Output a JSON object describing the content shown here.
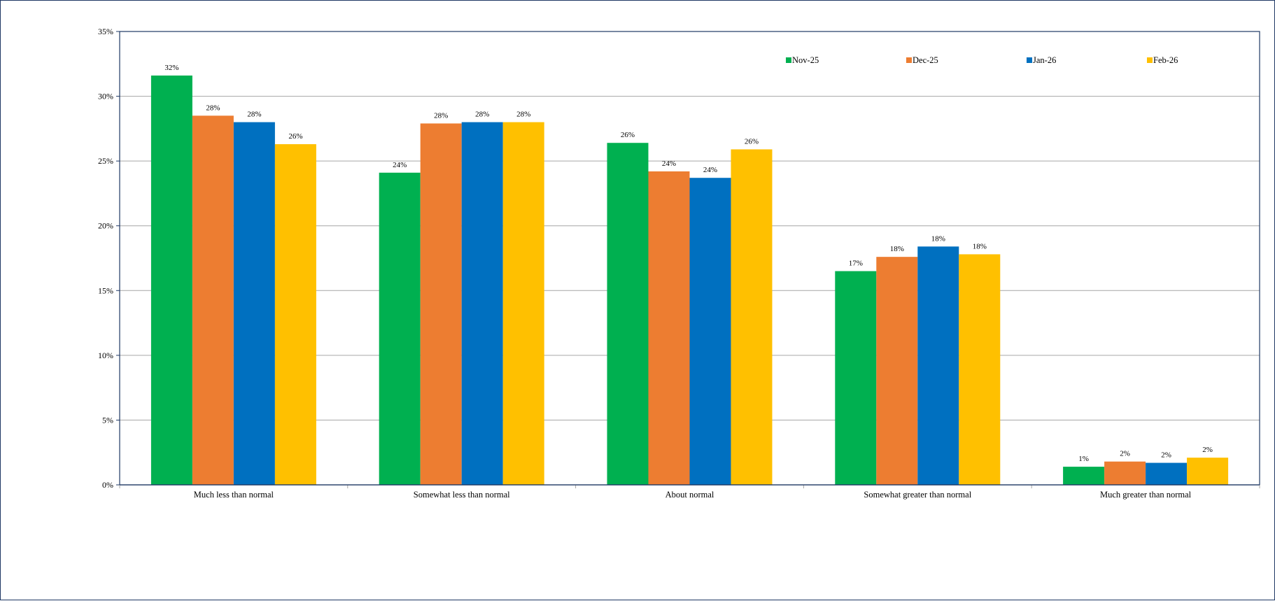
{
  "chart_data": {
    "type": "bar",
    "title": "",
    "xlabel": "",
    "ylabel": "",
    "ylim": [
      0,
      35
    ],
    "yticks": [
      "0%",
      "5%",
      "10%",
      "15%",
      "20%",
      "25%",
      "30%",
      "35%"
    ],
    "ytick_values": [
      0,
      5,
      10,
      15,
      20,
      25,
      30,
      35
    ],
    "grid": true,
    "legend_position": "top-right",
    "categories": [
      "Much less than normal",
      "Somewhat less than normal",
      "About normal",
      "Somewhat greater than normal",
      "Much greater than normal"
    ],
    "series": [
      {
        "name": "Nov-25",
        "color": "#00b050",
        "values": [
          31.6,
          24.1,
          26.4,
          16.5,
          1.4
        ],
        "labels": [
          "32%",
          "24%",
          "26%",
          "17%",
          "1%"
        ]
      },
      {
        "name": "Dec-25",
        "color": "#ed7d31",
        "values": [
          28.5,
          27.9,
          24.2,
          17.6,
          1.8
        ],
        "labels": [
          "28%",
          "28%",
          "24%",
          "18%",
          "2%"
        ]
      },
      {
        "name": "Jan-26",
        "color": "#0070c0",
        "values": [
          28.0,
          28.0,
          23.7,
          18.4,
          1.7
        ],
        "labels": [
          "28%",
          "28%",
          "24%",
          "18%",
          "2%"
        ]
      },
      {
        "name": "Feb-26",
        "color": "#ffc000",
        "values": [
          26.3,
          28.0,
          25.9,
          17.8,
          2.1
        ],
        "labels": [
          "26%",
          "28%",
          "26%",
          "18%",
          "2%"
        ]
      }
    ]
  }
}
